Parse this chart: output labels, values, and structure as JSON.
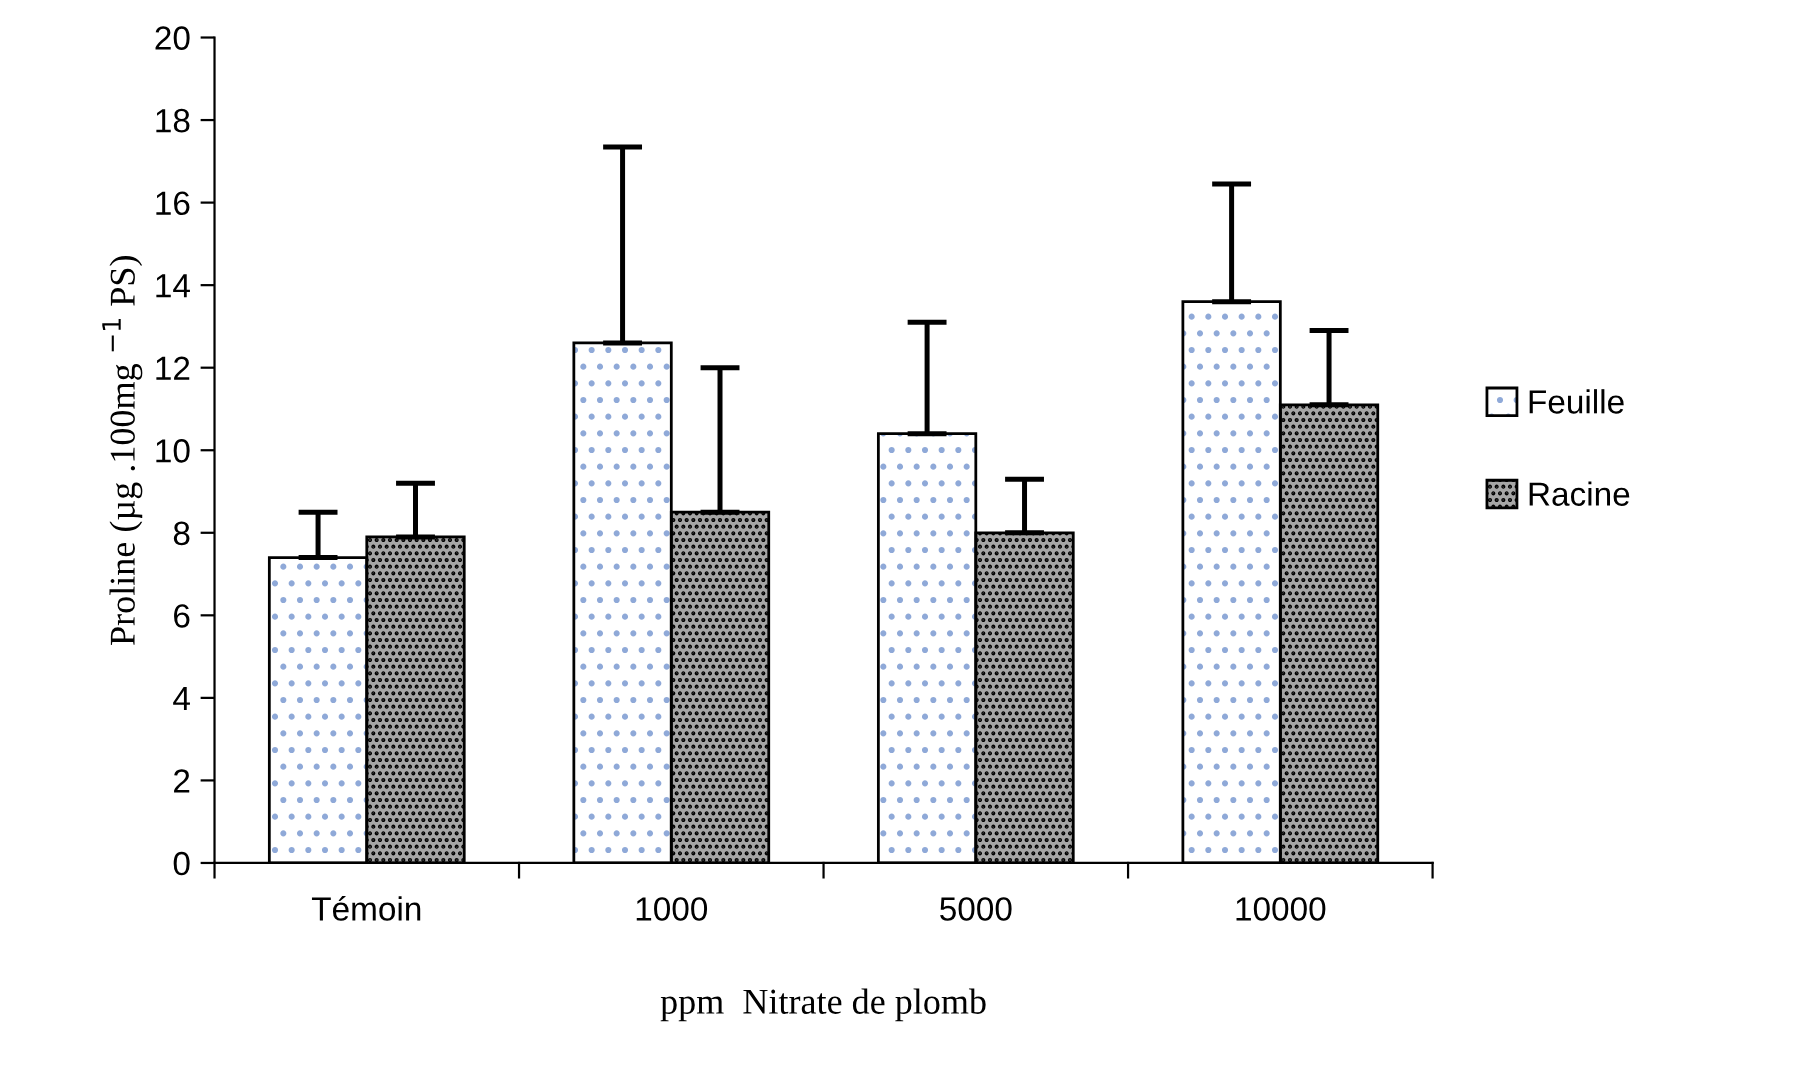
{
  "chart_data": {
    "type": "bar",
    "xlabel": "ppm  Nitrate de plomb",
    "ylabel": "Proline (µg .100mg $^{−1}$ PS)",
    "categories": [
      "Témoin",
      "1000",
      "5000",
      "10000"
    ],
    "series": [
      {
        "name": "Feuille",
        "color": "#ffffff",
        "values": [
          7.4,
          12.6,
          10.4,
          13.6
        ],
        "errors": [
          [
            7.4,
            8.5
          ],
          [
            12.6,
            17.35
          ],
          [
            10.4,
            13.1
          ],
          [
            13.6,
            16.45
          ]
        ]
      },
      {
        "name": "Racine",
        "color": "#a6a6a6",
        "values": [
          7.9,
          8.5,
          8.0,
          11.1
        ],
        "errors": [
          [
            7.9,
            9.2
          ],
          [
            8.5,
            12.0
          ],
          [
            8.0,
            9.3
          ],
          [
            11.1,
            12.9
          ]
        ]
      }
    ],
    "ylim": [
      0,
      20
    ],
    "yticks": [
      0,
      2,
      4,
      6,
      8,
      10,
      12,
      14,
      16,
      18,
      20
    ],
    "grid": false,
    "legend": "right"
  }
}
